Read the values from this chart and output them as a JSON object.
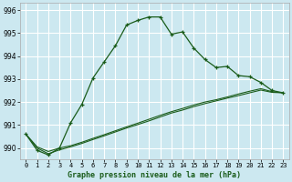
{
  "title": "Graphe pression niveau de la mer (hPa)",
  "bg_color": "#cce8f0",
  "grid_color": "#ffffff",
  "line_color": "#1a5c1a",
  "xlim": [
    -0.5,
    23.5
  ],
  "ylim": [
    989.5,
    996.3
  ],
  "yticks": [
    990,
    991,
    992,
    993,
    994,
    995,
    996
  ],
  "xtick_labels": [
    "0",
    "1",
    "2",
    "3",
    "4",
    "5",
    "6",
    "7",
    "8",
    "9",
    "10",
    "11",
    "12",
    "13",
    "14",
    "15",
    "16",
    "17",
    "18",
    "19",
    "20",
    "21",
    "22",
    "23"
  ],
  "line1": [
    990.6,
    989.9,
    989.7,
    990.0,
    991.1,
    991.9,
    993.05,
    993.75,
    994.45,
    995.35,
    995.55,
    995.7,
    995.7,
    994.95,
    995.05,
    994.35,
    993.85,
    993.5,
    993.55,
    993.15,
    993.1,
    992.85,
    992.5,
    992.4
  ],
  "line2": [
    990.6,
    990.05,
    989.85,
    990.0,
    990.1,
    990.25,
    990.42,
    990.58,
    990.75,
    990.92,
    991.08,
    991.25,
    991.42,
    991.58,
    991.72,
    991.87,
    992.0,
    992.1,
    992.22,
    992.35,
    992.47,
    992.58,
    992.45,
    992.4
  ],
  "line3": [
    990.6,
    990.0,
    989.75,
    989.92,
    990.05,
    990.2,
    990.37,
    990.53,
    990.7,
    990.87,
    991.02,
    991.18,
    991.35,
    991.52,
    991.65,
    991.8,
    991.93,
    992.05,
    992.17,
    992.28,
    992.4,
    992.52,
    992.42,
    992.4
  ]
}
